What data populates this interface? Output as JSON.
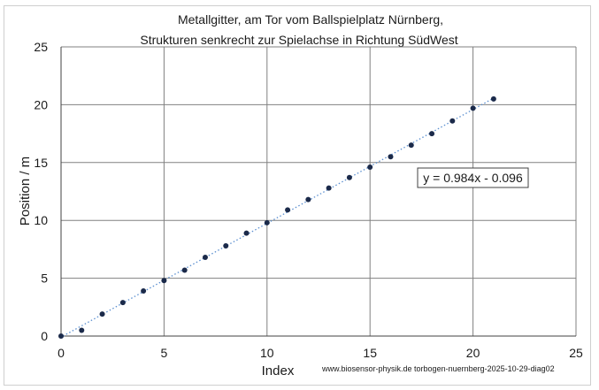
{
  "chart_data": {
    "type": "scatter",
    "title": [
      "Metallgitter,  am Tor vom Ballspielplatz Nürnberg,",
      "Strukturen senkrecht zur Spielachse in Richtung  SüdWest"
    ],
    "xlabel": "Index",
    "ylabel": "Position / m",
    "xlim": [
      0,
      25
    ],
    "ylim": [
      0,
      25
    ],
    "xticks": [
      0,
      5,
      10,
      15,
      20,
      25
    ],
    "yticks": [
      0,
      5,
      10,
      15,
      20,
      25
    ],
    "grid": true,
    "series": [
      {
        "name": "Metallgitter",
        "x": [
          0,
          1,
          2,
          3,
          4,
          5,
          6,
          7,
          8,
          9,
          10,
          11,
          12,
          13,
          14,
          15,
          16,
          17,
          18,
          19,
          20,
          21
        ],
        "y": [
          0,
          0.5,
          1.9,
          2.9,
          3.9,
          4.8,
          5.7,
          6.8,
          7.8,
          8.9,
          9.8,
          10.9,
          11.8,
          12.8,
          13.7,
          14.6,
          15.5,
          16.5,
          17.5,
          18.6,
          19.7,
          20.5
        ]
      }
    ],
    "trendline": {
      "slope": 0.984,
      "intercept": -0.096,
      "style": "dotted"
    },
    "equation": "y = 0.984x - 0.096",
    "credit": "www.biosensor-physik.de  torbogen-nuernberg-2025-10-29-diag02",
    "colors": {
      "marker": "#1b2a4a",
      "trend": "#5b8fd0",
      "grid": "#808080",
      "axis": "#404040"
    }
  }
}
